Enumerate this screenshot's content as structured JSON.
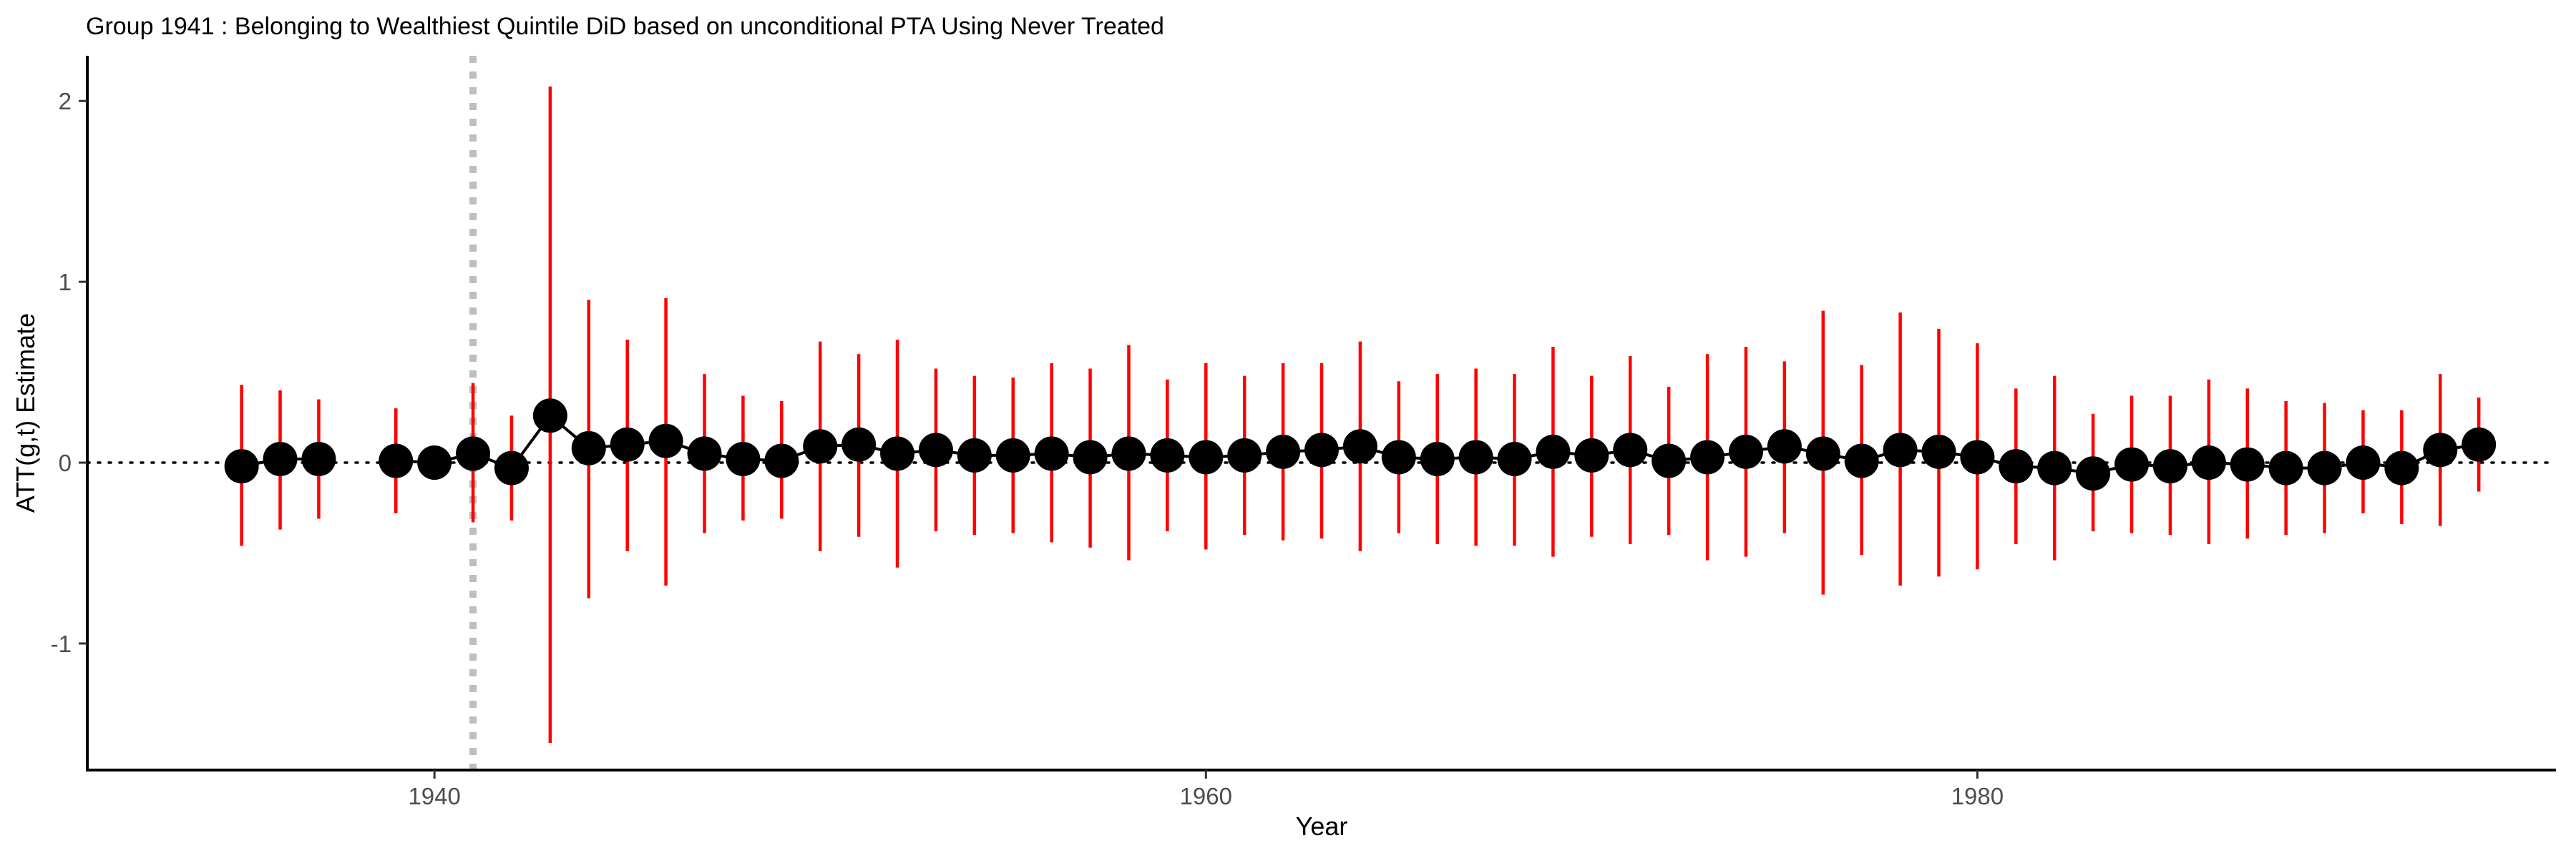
{
  "chart_data": {
    "type": "scatter",
    "title": "Group 1941 : Belonging to Wealthiest Quintile DiD based on unconditional PTA Using Never Treated",
    "xlabel": "Year",
    "ylabel": "ATT(g,t) Estimate",
    "xlim": [
      1931,
      1995
    ],
    "ylim": [
      -1.7,
      2.25
    ],
    "xticks": [
      1940,
      1960,
      1980
    ],
    "xtick_labels": [
      "1940",
      "1960",
      "1980"
    ],
    "yticks": [
      -1,
      0,
      1,
      2
    ],
    "ytick_labels": [
      "-1",
      "0",
      "1",
      "2"
    ],
    "treatment_year": 1941,
    "reference_line": 0,
    "colors": {
      "point": "#000000",
      "ci_post": "#ff0000",
      "ci_pre": "#ff0000",
      "treatment_line": "#bebebe",
      "zero_line": "#000000",
      "connector": "#000000"
    },
    "series": [
      {
        "name": "ATT",
        "points": [
          {
            "x": 1935,
            "y": -0.02,
            "lo": -0.46,
            "hi": 0.43
          },
          {
            "x": 1936,
            "y": 0.02,
            "lo": -0.37,
            "hi": 0.4
          },
          {
            "x": 1937,
            "y": 0.02,
            "lo": -0.31,
            "hi": 0.35
          },
          {
            "x": 1939,
            "y": 0.01,
            "lo": -0.28,
            "hi": 0.3
          },
          {
            "x": 1940,
            "y": 0.0,
            "lo": null,
            "hi": null
          },
          {
            "x": 1941,
            "y": 0.05,
            "lo": -0.33,
            "hi": 0.44
          },
          {
            "x": 1942,
            "y": -0.03,
            "lo": -0.32,
            "hi": 0.26
          },
          {
            "x": 1943,
            "y": 0.26,
            "lo": -1.55,
            "hi": 2.08
          },
          {
            "x": 1944,
            "y": 0.08,
            "lo": -0.75,
            "hi": 0.9
          },
          {
            "x": 1945,
            "y": 0.1,
            "lo": -0.49,
            "hi": 0.68
          },
          {
            "x": 1946,
            "y": 0.12,
            "lo": -0.68,
            "hi": 0.91
          },
          {
            "x": 1947,
            "y": 0.05,
            "lo": -0.39,
            "hi": 0.49
          },
          {
            "x": 1948,
            "y": 0.02,
            "lo": -0.32,
            "hi": 0.37
          },
          {
            "x": 1949,
            "y": 0.01,
            "lo": -0.31,
            "hi": 0.34
          },
          {
            "x": 1950,
            "y": 0.09,
            "lo": -0.49,
            "hi": 0.67
          },
          {
            "x": 1951,
            "y": 0.1,
            "lo": -0.41,
            "hi": 0.6
          },
          {
            "x": 1952,
            "y": 0.05,
            "lo": -0.58,
            "hi": 0.68
          },
          {
            "x": 1953,
            "y": 0.07,
            "lo": -0.38,
            "hi": 0.52
          },
          {
            "x": 1954,
            "y": 0.04,
            "lo": -0.4,
            "hi": 0.48
          },
          {
            "x": 1955,
            "y": 0.04,
            "lo": -0.39,
            "hi": 0.47
          },
          {
            "x": 1956,
            "y": 0.05,
            "lo": -0.44,
            "hi": 0.55
          },
          {
            "x": 1957,
            "y": 0.03,
            "lo": -0.47,
            "hi": 0.52
          },
          {
            "x": 1958,
            "y": 0.05,
            "lo": -0.54,
            "hi": 0.65
          },
          {
            "x": 1959,
            "y": 0.04,
            "lo": -0.38,
            "hi": 0.46
          },
          {
            "x": 1960,
            "y": 0.03,
            "lo": -0.48,
            "hi": 0.55
          },
          {
            "x": 1961,
            "y": 0.04,
            "lo": -0.4,
            "hi": 0.48
          },
          {
            "x": 1962,
            "y": 0.06,
            "lo": -0.43,
            "hi": 0.55
          },
          {
            "x": 1963,
            "y": 0.07,
            "lo": -0.42,
            "hi": 0.55
          },
          {
            "x": 1964,
            "y": 0.09,
            "lo": -0.49,
            "hi": 0.67
          },
          {
            "x": 1965,
            "y": 0.03,
            "lo": -0.39,
            "hi": 0.45
          },
          {
            "x": 1966,
            "y": 0.02,
            "lo": -0.45,
            "hi": 0.49
          },
          {
            "x": 1967,
            "y": 0.03,
            "lo": -0.46,
            "hi": 0.52
          },
          {
            "x": 1968,
            "y": 0.02,
            "lo": -0.46,
            "hi": 0.49
          },
          {
            "x": 1969,
            "y": 0.06,
            "lo": -0.52,
            "hi": 0.64
          },
          {
            "x": 1970,
            "y": 0.04,
            "lo": -0.41,
            "hi": 0.48
          },
          {
            "x": 1971,
            "y": 0.07,
            "lo": -0.45,
            "hi": 0.59
          },
          {
            "x": 1972,
            "y": 0.01,
            "lo": -0.4,
            "hi": 0.42
          },
          {
            "x": 1973,
            "y": 0.03,
            "lo": -0.54,
            "hi": 0.6
          },
          {
            "x": 1974,
            "y": 0.06,
            "lo": -0.52,
            "hi": 0.64
          },
          {
            "x": 1975,
            "y": 0.09,
            "lo": -0.39,
            "hi": 0.56
          },
          {
            "x": 1976,
            "y": 0.05,
            "lo": -0.73,
            "hi": 0.84
          },
          {
            "x": 1977,
            "y": 0.01,
            "lo": -0.51,
            "hi": 0.54
          },
          {
            "x": 1978,
            "y": 0.07,
            "lo": -0.68,
            "hi": 0.83
          },
          {
            "x": 1979,
            "y": 0.06,
            "lo": -0.63,
            "hi": 0.74
          },
          {
            "x": 1980,
            "y": 0.03,
            "lo": -0.59,
            "hi": 0.66
          },
          {
            "x": 1981,
            "y": -0.02,
            "lo": -0.45,
            "hi": 0.41
          },
          {
            "x": 1982,
            "y": -0.03,
            "lo": -0.54,
            "hi": 0.48
          },
          {
            "x": 1983,
            "y": -0.06,
            "lo": -0.38,
            "hi": 0.27
          },
          {
            "x": 1984,
            "y": -0.01,
            "lo": -0.39,
            "hi": 0.37
          },
          {
            "x": 1985,
            "y": -0.02,
            "lo": -0.4,
            "hi": 0.37
          },
          {
            "x": 1986,
            "y": 0.0,
            "lo": -0.45,
            "hi": 0.46
          },
          {
            "x": 1987,
            "y": -0.01,
            "lo": -0.42,
            "hi": 0.41
          },
          {
            "x": 1988,
            "y": -0.03,
            "lo": -0.4,
            "hi": 0.34
          },
          {
            "x": 1989,
            "y": -0.03,
            "lo": -0.39,
            "hi": 0.33
          },
          {
            "x": 1990,
            "y": 0.0,
            "lo": -0.28,
            "hi": 0.29
          },
          {
            "x": 1991,
            "y": -0.03,
            "lo": -0.34,
            "hi": 0.29
          },
          {
            "x": 1992,
            "y": 0.07,
            "lo": -0.35,
            "hi": 0.49
          },
          {
            "x": 1993,
            "y": 0.1,
            "lo": -0.16,
            "hi": 0.36
          }
        ]
      }
    ]
  }
}
